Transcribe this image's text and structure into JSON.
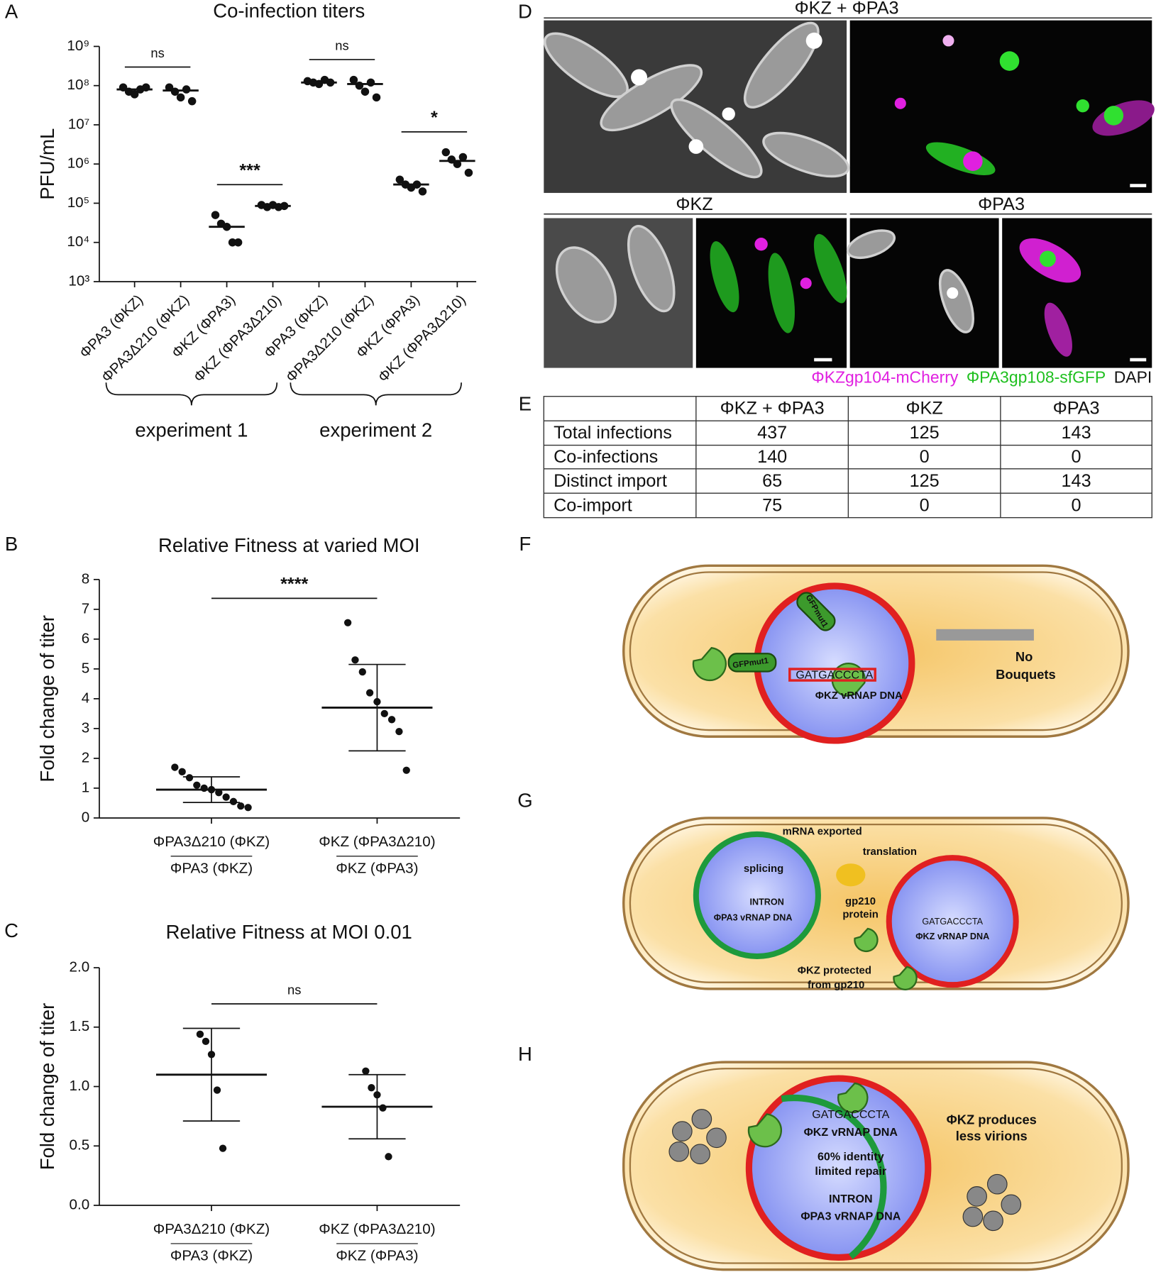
{
  "panel_labels": [
    "A",
    "B",
    "C",
    "D",
    "E",
    "F",
    "G",
    "H"
  ],
  "chart_data": [
    {
      "type": "scatter",
      "title": "Co-infection titers",
      "y_label": "PFU/mL",
      "scale": "log",
      "categories": [
        "ΦPA3 (ΦKZ)",
        "ΦPA3Δ210 (ΦKZ)",
        "ΦKZ (ΦPA3)",
        "ΦKZ (ΦPA3Δ210)",
        "ΦPA3 (ΦKZ)",
        "ΦPA3Δ210 (ΦKZ)",
        "ΦKZ (ΦPA3)",
        "ΦKZ (ΦPA3Δ210)"
      ],
      "values": [
        [
          90000000,
          70000000,
          60000000,
          80000000,
          90000000
        ],
        [
          90000000,
          70000000,
          50000000,
          80000000,
          40000000
        ],
        [
          50000,
          30000,
          25000,
          10000,
          10000
        ],
        [
          90000,
          80000,
          90000,
          80000,
          85000
        ],
        [
          130000000,
          120000000,
          110000000,
          140000000,
          120000000
        ],
        [
          140000000,
          100000000,
          70000000,
          120000000,
          50000000
        ],
        [
          400000,
          300000,
          250000,
          300000,
          200000
        ],
        [
          2000000,
          1300000,
          1000000,
          1500000,
          600000
        ]
      ],
      "medians": [
        80000000,
        75000000,
        25000,
        85000,
        120000000,
        110000000,
        300000,
        1200000
      ],
      "color": "#111111",
      "ylim": [
        1000,
        1000000000
      ],
      "yticks": [
        {
          "value": 1000,
          "label": "10³"
        },
        {
          "value": 10000,
          "label": "10⁴"
        },
        {
          "value": 100000,
          "label": "10⁵"
        },
        {
          "value": 1000000,
          "label": "10⁶"
        },
        {
          "value": 10000000,
          "label": "10⁷"
        },
        {
          "value": 100000000,
          "label": "10⁸"
        },
        {
          "value": 1000000000,
          "label": "10⁹"
        }
      ],
      "annotations": [
        "ns",
        "***",
        "ns",
        "*"
      ],
      "groups": [
        "experiment 1",
        "experiment 2"
      ]
    },
    {
      "type": "scatter",
      "title": "Relative Fitness at varied MOI",
      "y_label": "Fold change of titer",
      "categories": [
        "ΦPA3Δ210 (ΦKZ)",
        "ΦKZ (ΦPA3Δ210)"
      ],
      "denominators": [
        "ΦPA3 (ΦKZ)",
        "ΦKZ (ΦPA3)"
      ],
      "values": [
        [
          1.7,
          1.55,
          1.35,
          1.1,
          1.0,
          0.95,
          0.85,
          0.7,
          0.55,
          0.4,
          0.35
        ],
        [
          6.55,
          5.3,
          4.9,
          4.2,
          3.9,
          3.5,
          3.3,
          2.9,
          1.6
        ]
      ],
      "means": [
        0.95,
        3.7
      ],
      "sds": [
        0.43,
        1.45
      ],
      "color": "#111111",
      "ylim": [
        0,
        8
      ],
      "yticks": [
        0,
        1,
        2,
        3,
        4,
        5,
        6,
        7,
        8
      ],
      "annotations": [
        "****"
      ]
    },
    {
      "type": "scatter",
      "title": "Relative Fitness at MOI 0.01",
      "y_label": "Fold change of titer",
      "categories": [
        "ΦPA3Δ210 (ΦKZ)",
        "ΦKZ (ΦPA3Δ210)"
      ],
      "denominators": [
        "ΦPA3 (ΦKZ)",
        "ΦKZ (ΦPA3)"
      ],
      "values": [
        [
          1.44,
          1.38,
          1.27,
          0.97,
          0.48
        ],
        [
          1.13,
          0.99,
          0.93,
          0.82,
          0.41
        ]
      ],
      "means": [
        1.1,
        0.83
      ],
      "sds": [
        0.39,
        0.27
      ],
      "color": "#111111",
      "ylim": [
        0,
        2
      ],
      "yticks": [
        {
          "value": 0,
          "label": "0.0"
        },
        0.5,
        {
          "value": 1,
          "label": "1.0"
        },
        1.5,
        {
          "value": 2,
          "label": "2.0"
        }
      ],
      "annotations": [
        "ns"
      ]
    }
  ],
  "microscopy": {
    "top_title": "ΦKZ + ΦPA3",
    "left_title": "ΦKZ",
    "right_title": "ΦPA3",
    "legend": [
      {
        "text": "ΦKZgp104-mCherry",
        "color": "#e020e0"
      },
      {
        "text": "ΦPA3gp108-sfGFP",
        "color": "#20c020"
      },
      {
        "text": "DAPI",
        "color": "#111111"
      }
    ]
  },
  "table": {
    "header": [
      "ΦKZ + ΦPA3",
      "ΦKZ",
      "ΦPA3"
    ],
    "rows": [
      [
        "Total infections",
        "437",
        "125",
        "143"
      ],
      [
        "Co-infections",
        "140",
        "0",
        "0"
      ],
      [
        "Distinct import",
        "65",
        "125",
        "143"
      ],
      [
        "Co-import",
        "75",
        "0",
        "0"
      ]
    ]
  },
  "diagrams": {
    "F": [
      "GFPmut1",
      "GFPmut1",
      "GATGACCCTA",
      "ΦKZ vRNAP DNA",
      "No",
      "Bouquets"
    ],
    "G": [
      "mRNA exported",
      "translation",
      "splicing",
      "INTRON",
      "ΦPA3 vRNAP DNA",
      "gp210",
      "protein",
      "GATGACCCTA",
      "ΦKZ vRNAP DNA",
      "ΦKZ protected",
      "from gp210"
    ],
    "H": [
      "GATGACCCTA",
      "ΦKZ vRNAP DNA",
      "60% identity",
      "limited repair",
      "INTRON",
      "ΦPA3 vRNAP DNA",
      "ΦKZ produces",
      "less virions"
    ]
  }
}
